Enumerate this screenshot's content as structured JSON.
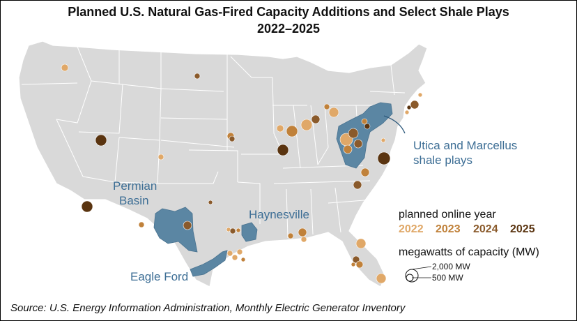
{
  "title_line1": "Planned U.S. Natural Gas-Fired Capacity Additions and Select Shale Plays",
  "title_line2": "2022–2025",
  "shale_labels": {
    "utica": "Utica and Marcellus",
    "utica2": "shale plays",
    "permian": "Permian",
    "permian2": "Basin",
    "haynesville": "Haynesville",
    "eagle_ford": "Eagle Ford"
  },
  "legend": {
    "year_title": "planned online year",
    "years": [
      {
        "label": "2022",
        "color": "#e0a868"
      },
      {
        "label": "2023",
        "color": "#c0813a"
      },
      {
        "label": "2024",
        "color": "#8a5a2b"
      },
      {
        "label": "2025",
        "color": "#5a3410"
      }
    ],
    "size_title": "megawatts of capacity (MW)",
    "size_large": "2,000 MW",
    "size_small": "500 MW"
  },
  "source": "Source: U.S. Energy Information Administration, Monthly Electric Generator Inventory",
  "colors": {
    "land": "#d9d9d9",
    "state_border": "#ffffff",
    "shale": "#5b86a3",
    "shale_label": "#3d6e95"
  }
}
